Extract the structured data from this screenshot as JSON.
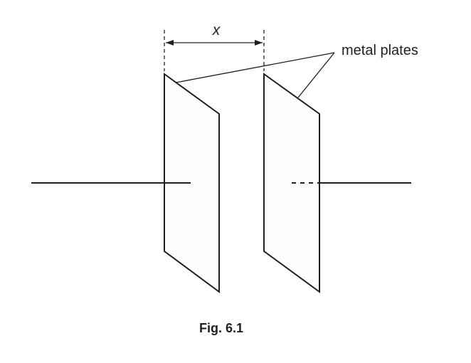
{
  "diagram": {
    "separation_label": "x",
    "plates_label": "metal plates",
    "caption": "Fig. 6.1"
  }
}
